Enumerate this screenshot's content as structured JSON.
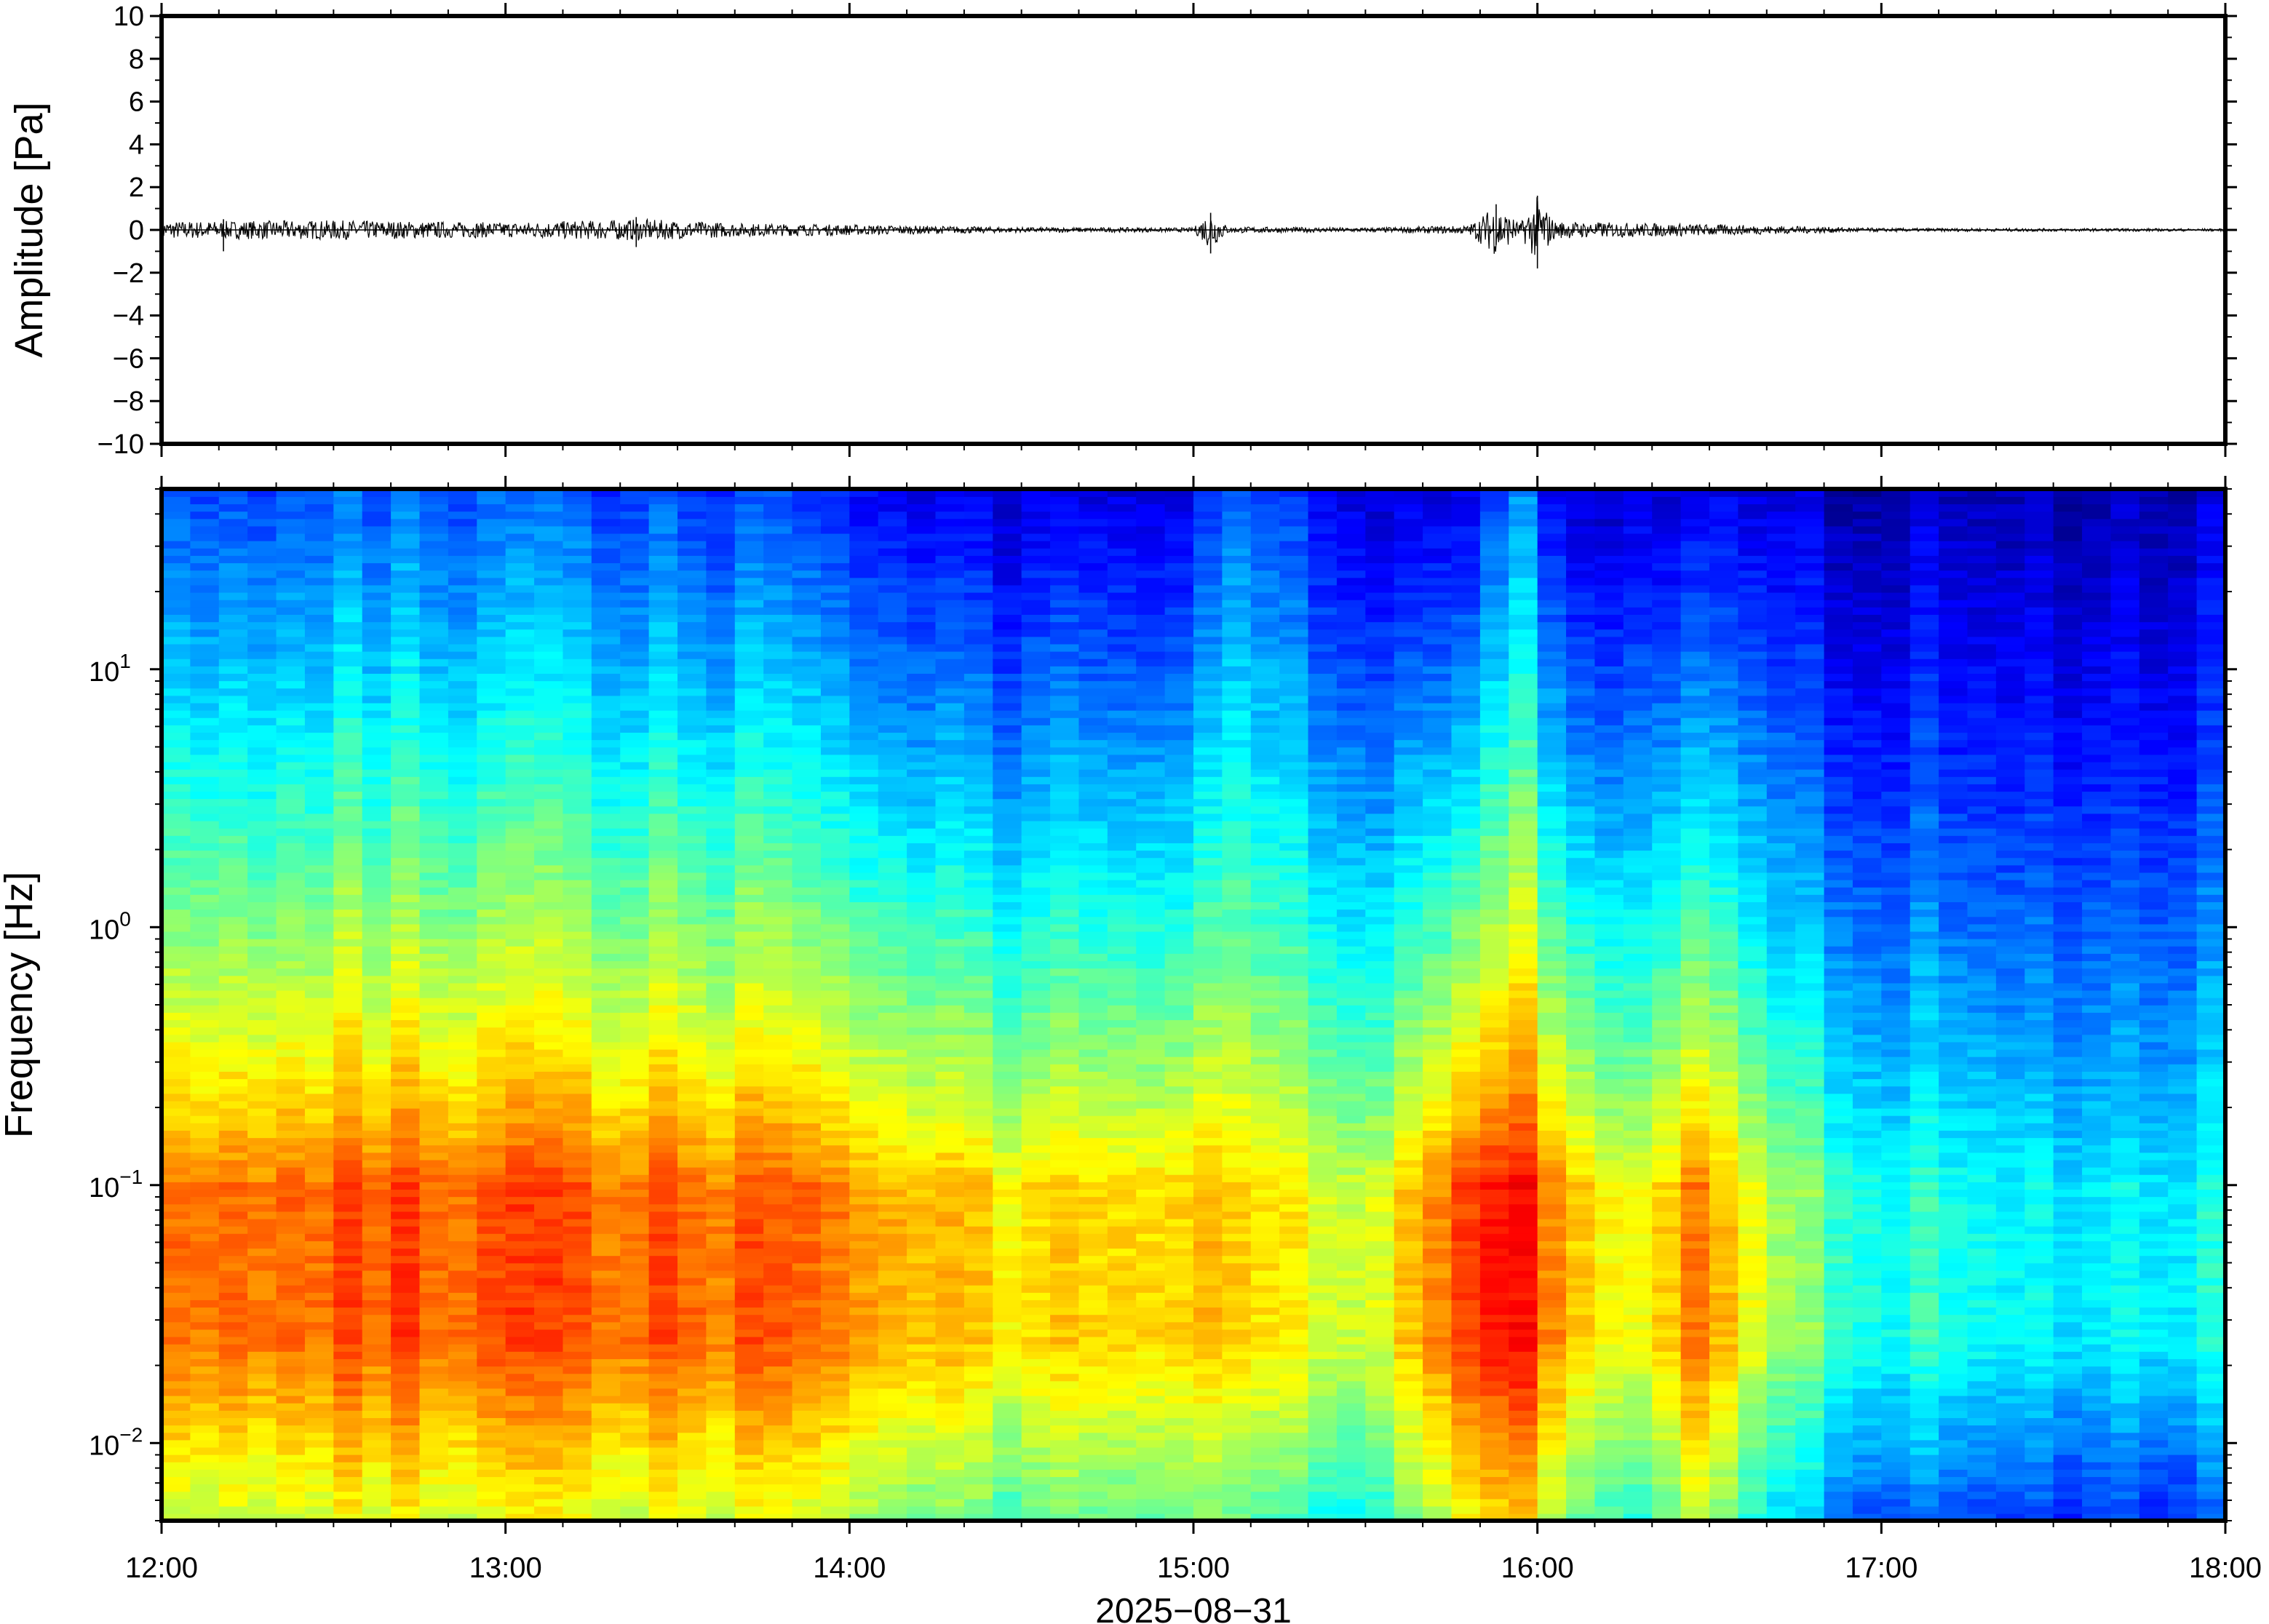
{
  "chart_data": [
    {
      "type": "line",
      "panel": "waveform",
      "ylabel": "Amplitude [Pa]",
      "ylim": [
        -10,
        10
      ],
      "yticks": [
        10,
        8,
        6,
        4,
        2,
        0,
        -2,
        -4,
        -6,
        -8,
        -10
      ],
      "ytick_labels": [
        "10",
        "8",
        "6",
        "4",
        "2",
        "0",
        "−2",
        "−4",
        "−6",
        "−8",
        "−10"
      ],
      "x_range": [
        "12:00",
        "18:00"
      ],
      "envelope": {
        "hours": [
          12.0,
          12.5,
          13.0,
          13.4,
          13.7,
          14.0,
          14.5,
          15.0,
          15.05,
          15.1,
          15.5,
          15.8,
          15.88,
          15.95,
          16.0,
          16.05,
          16.4,
          17.0,
          18.0
        ],
        "half_amplitude_pa": [
          0.4,
          0.45,
          0.35,
          0.5,
          0.3,
          0.25,
          0.12,
          0.1,
          0.9,
          0.15,
          0.1,
          0.2,
          1.2,
          0.3,
          1.6,
          0.4,
          0.3,
          0.08,
          0.06
        ]
      },
      "spikes": [
        {
          "hour": 12.18,
          "min_pa": -1.0,
          "max_pa": 0.5
        },
        {
          "hour": 13.38,
          "min_pa": -0.8,
          "max_pa": 0.6
        },
        {
          "hour": 15.05,
          "min_pa": -1.1,
          "max_pa": 0.8
        },
        {
          "hour": 15.88,
          "min_pa": -0.7,
          "max_pa": 1.2
        },
        {
          "hour": 16.0,
          "min_pa": -1.8,
          "max_pa": 1.6
        }
      ]
    },
    {
      "type": "heatmap",
      "panel": "spectrogram",
      "ylabel": "Frequency [Hz]",
      "yscale": "log",
      "ylim": [
        0.005,
        50
      ],
      "yticks": [
        0.01,
        0.1,
        1,
        10
      ],
      "ytick_labels": [
        {
          "base": "10",
          "exp": "−2"
        },
        {
          "base": "10",
          "exp": "−1"
        },
        {
          "base": "10",
          "exp": "0"
        },
        {
          "base": "10",
          "exp": "1"
        }
      ],
      "colormap": "jet",
      "intensity_by_hour": {
        "hours": [
          12.0,
          13.0,
          14.0,
          14.5,
          15.0,
          15.1,
          15.5,
          15.8,
          16.0,
          16.05,
          16.3,
          16.45,
          16.7,
          17.0,
          17.5,
          18.0
        ],
        "low_freq_level": [
          0.82,
          0.83,
          0.8,
          0.66,
          0.7,
          0.74,
          0.58,
          0.84,
          0.9,
          0.76,
          0.62,
          0.78,
          0.52,
          0.4,
          0.36,
          0.36
        ],
        "high_freq_level": [
          0.18,
          0.17,
          0.12,
          0.02,
          0.05,
          0.24,
          0.03,
          0.02,
          0.25,
          0.04,
          0.03,
          0.03,
          0.01,
          0.0,
          0.0,
          0.0
        ]
      }
    }
  ],
  "x_axis": {
    "tick_labels": [
      "12:00",
      "13:00",
      "14:00",
      "15:00",
      "16:00",
      "17:00",
      "18:00"
    ],
    "date_label": "2025−08−31"
  }
}
